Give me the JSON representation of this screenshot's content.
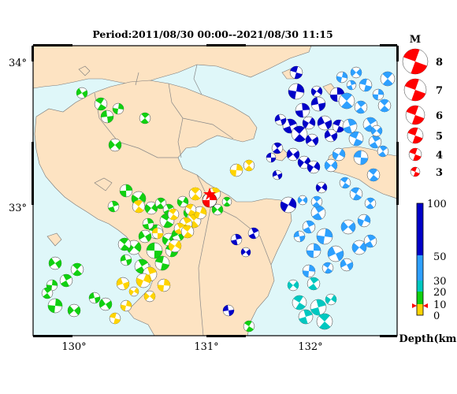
{
  "header": {
    "period_label": "Period:2011/08/30 00:00--2021/08/30 11:15"
  },
  "map": {
    "lon_ticks": [
      "130°",
      "131°",
      "132°"
    ],
    "lat_ticks": [
      "34°",
      "33°"
    ],
    "land_color": "#fde3c2",
    "sea_color": "#dff7f9",
    "border_color": "#888888"
  },
  "magnitude_legend": {
    "title": "M",
    "levels": [
      "8",
      "7",
      "6",
      "5",
      "4",
      "3"
    ],
    "ball_color": "#ff0000"
  },
  "depth_colorbar": {
    "ticks": [
      "100",
      "50",
      "30",
      "20",
      "10",
      "0"
    ],
    "unit_label": "Depth(km)",
    "colors": {
      "shallow": "#ffd400",
      "mid": "#11d011",
      "teal": "#00c8c0",
      "light_blue": "#2ea0ff",
      "deep": "#0000c8"
    }
  },
  "highlight_event": {
    "color": "#ff0000",
    "marker": "red-star-icon"
  }
}
